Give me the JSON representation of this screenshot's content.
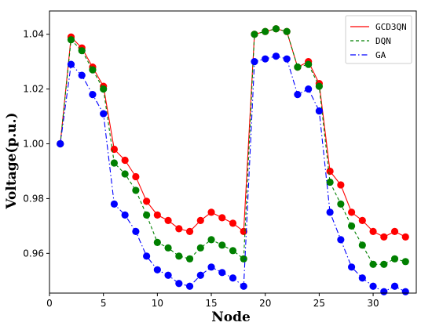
{
  "chart_data": {
    "type": "line",
    "title": "",
    "xlabel": "Node",
    "ylabel": "Voltage(p.u.)",
    "xlim": [
      0,
      34
    ],
    "ylim": [
      0.9455,
      1.0485
    ],
    "xticks": [
      0,
      5,
      10,
      15,
      20,
      25,
      30
    ],
    "yticks": [
      0.96,
      0.98,
      1.0,
      1.02,
      1.04
    ],
    "ytick_labels": [
      "0.96",
      "0.98",
      "1.00",
      "1.02",
      "1.04"
    ],
    "grid": false,
    "legend_position": "top-right",
    "x": [
      1,
      2,
      3,
      4,
      5,
      6,
      7,
      8,
      9,
      10,
      11,
      12,
      13,
      14,
      15,
      16,
      17,
      18,
      19,
      20,
      21,
      22,
      23,
      24,
      25,
      26,
      27,
      28,
      29,
      30,
      31,
      32,
      33
    ],
    "series": [
      {
        "name": "GCD3QN",
        "color": "#ff0000",
        "line_style": "solid",
        "values": [
          1.0,
          1.039,
          1.035,
          1.028,
          1.021,
          0.998,
          0.994,
          0.988,
          0.979,
          0.974,
          0.972,
          0.969,
          0.968,
          0.972,
          0.975,
          0.973,
          0.971,
          0.968,
          1.04,
          1.041,
          1.042,
          1.041,
          1.028,
          1.03,
          1.022,
          0.99,
          0.985,
          0.975,
          0.972,
          0.968,
          0.966,
          0.968,
          0.966
        ]
      },
      {
        "name": "DQN",
        "color": "#008000",
        "line_style": "dashed",
        "values": [
          1.0,
          1.038,
          1.034,
          1.027,
          1.02,
          0.993,
          0.989,
          0.983,
          0.974,
          0.964,
          0.962,
          0.959,
          0.958,
          0.962,
          0.965,
          0.963,
          0.961,
          0.958,
          1.04,
          1.041,
          1.042,
          1.041,
          1.028,
          1.029,
          1.021,
          0.986,
          0.978,
          0.97,
          0.963,
          0.956,
          0.956,
          0.958,
          0.957
        ]
      },
      {
        "name": "GA",
        "color": "#0000ff",
        "line_style": "dashdot",
        "values": [
          1.0,
          1.029,
          1.025,
          1.018,
          1.011,
          0.978,
          0.974,
          0.968,
          0.959,
          0.954,
          0.952,
          0.949,
          0.948,
          0.952,
          0.955,
          0.953,
          0.951,
          0.948,
          1.03,
          1.031,
          1.032,
          1.031,
          1.018,
          1.02,
          1.012,
          0.975,
          0.965,
          0.955,
          0.951,
          0.948,
          0.946,
          0.948,
          0.946
        ]
      }
    ]
  }
}
